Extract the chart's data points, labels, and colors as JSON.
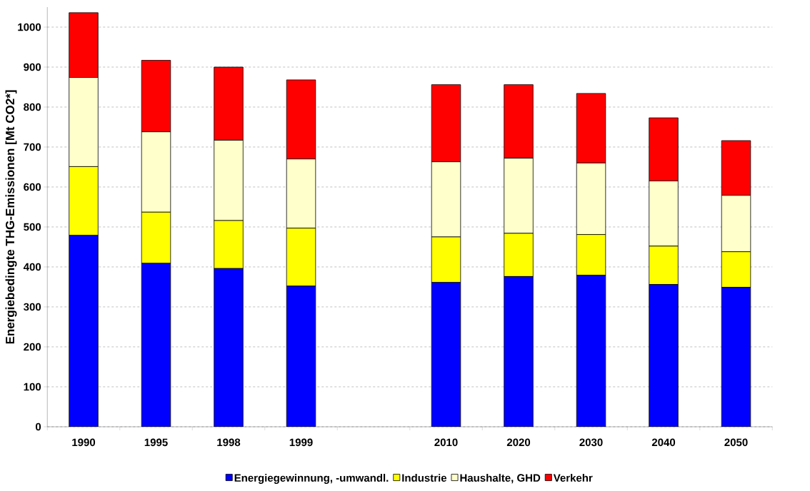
{
  "chart_data": {
    "type": "bar",
    "stacked": true,
    "ylabel": "Energiebedingte THG-Emissionen [Mt CO2*]",
    "categories": [
      "1990",
      "1995",
      "1998",
      "1999",
      null,
      "2010",
      "2020",
      "2030",
      "2040",
      "2050"
    ],
    "series": [
      {
        "name": "Energiegewinnung, -umwandl.",
        "color": "#0000ff",
        "values": [
          479,
          409,
          396,
          352,
          null,
          361,
          376,
          379,
          356,
          349
        ]
      },
      {
        "name": "Industrie",
        "color": "#ffff00",
        "values": [
          172,
          128,
          120,
          145,
          null,
          114,
          108,
          102,
          96,
          89
        ]
      },
      {
        "name": "Haushalte, GHD",
        "color": "#ffffcc",
        "values": [
          223,
          201,
          201,
          173,
          null,
          188,
          188,
          179,
          163,
          141
        ]
      },
      {
        "name": "Verkehr",
        "color": "#ff0000",
        "values": [
          162,
          179,
          183,
          198,
          null,
          193,
          184,
          174,
          158,
          137
        ]
      }
    ],
    "ylim": [
      0,
      1050
    ],
    "yticks": [
      0,
      100,
      200,
      300,
      400,
      500,
      600,
      700,
      800,
      900,
      1000
    ],
    "grid": "y",
    "legend": "bottom"
  }
}
